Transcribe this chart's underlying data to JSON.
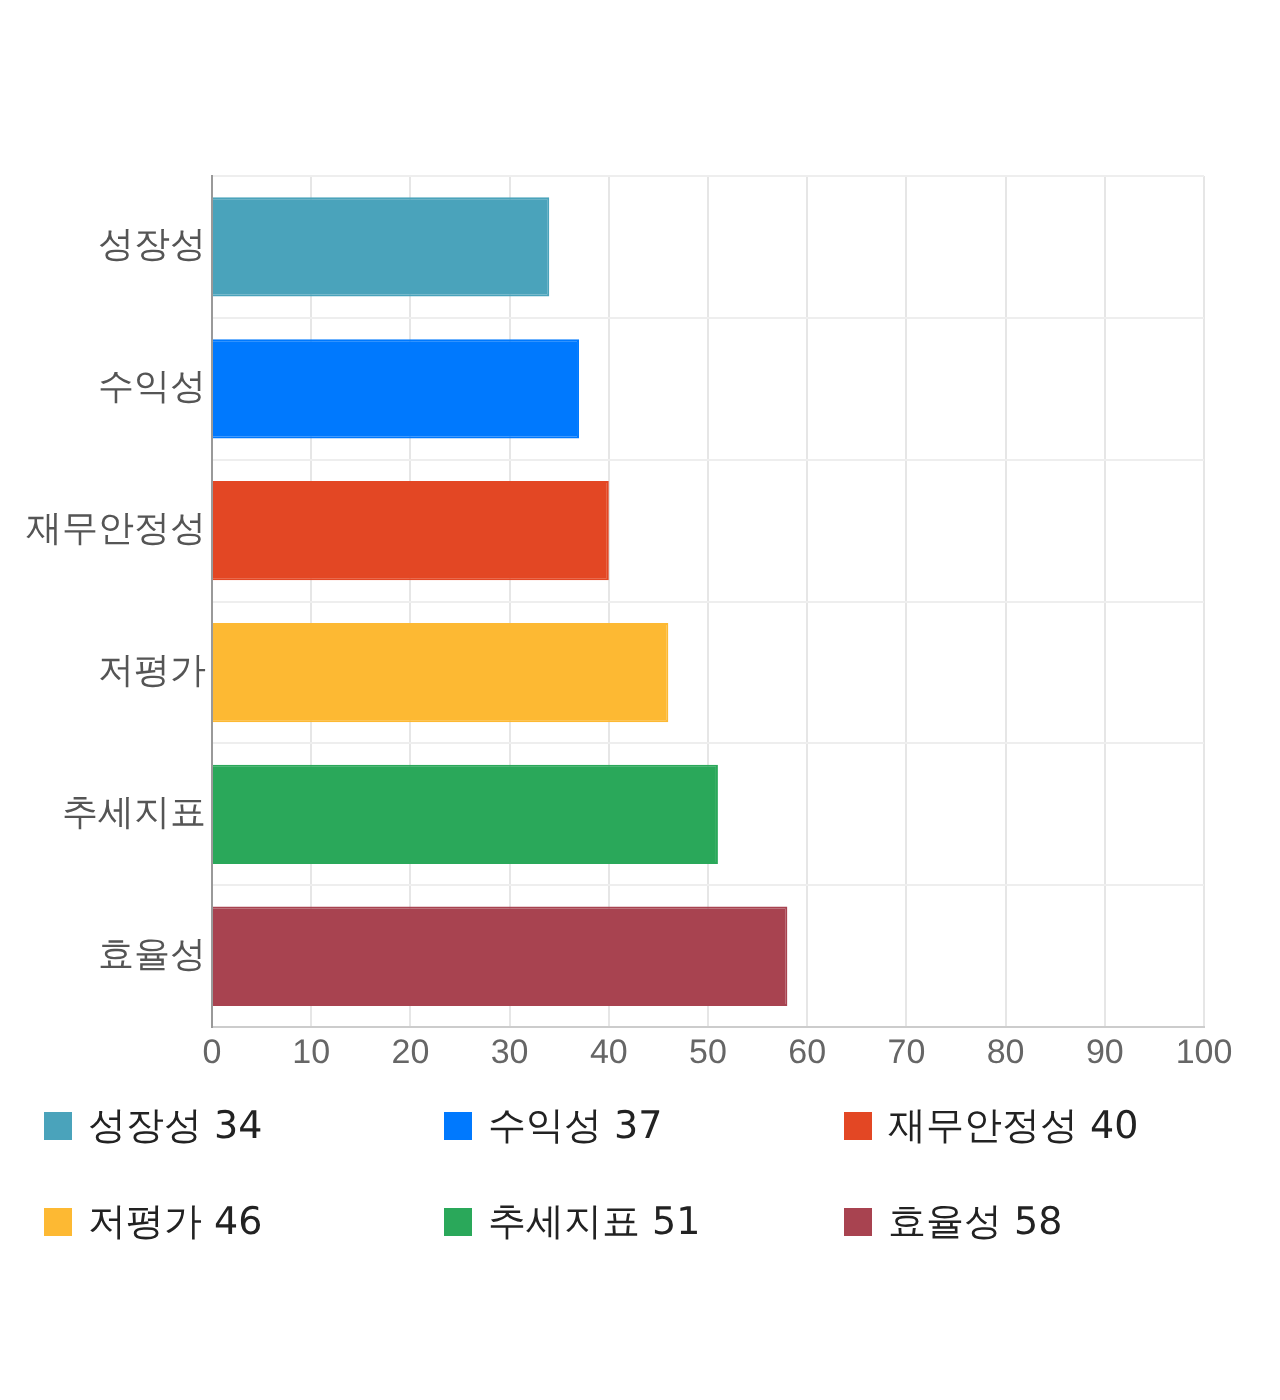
{
  "chart_data": {
    "type": "bar",
    "orientation": "horizontal",
    "categories": [
      "성장성",
      "수익성",
      "재무안정성",
      "저평가",
      "추세지표",
      "효율성"
    ],
    "series": [
      {
        "name": "성장성 34",
        "color": "#4aa3bb",
        "values": [
          34,
          null,
          null,
          null,
          null,
          null
        ]
      },
      {
        "name": "수익성 37",
        "color": "#0079fe",
        "values": [
          null,
          37,
          null,
          null,
          null,
          null
        ]
      },
      {
        "name": "재무안정성 40",
        "color": "#e34724",
        "values": [
          null,
          null,
          40,
          null,
          null,
          null
        ]
      },
      {
        "name": "저평가 46",
        "color": "#fdb933",
        "values": [
          null,
          null,
          null,
          46,
          null,
          null
        ]
      },
      {
        "name": "추세지표 51",
        "color": "#2aa85a",
        "values": [
          null,
          null,
          null,
          null,
          51,
          null
        ]
      },
      {
        "name": "효율성 58",
        "color": "#a84350",
        "values": [
          null,
          null,
          null,
          null,
          null,
          58
        ]
      }
    ],
    "xlim": [
      0,
      100
    ],
    "xticks": [
      0,
      10,
      20,
      30,
      40,
      50,
      60,
      70,
      80,
      90,
      100
    ],
    "grid": true,
    "legend": "bottom"
  }
}
